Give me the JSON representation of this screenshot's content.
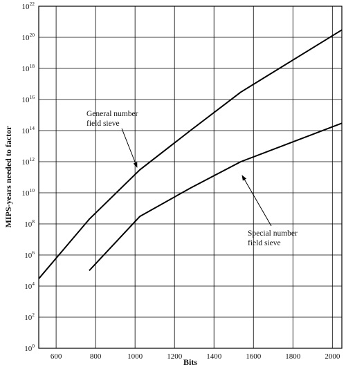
{
  "chart_data": {
    "type": "line",
    "xlabel": "Bits",
    "ylabel": "MIPS-years needed to factor",
    "xlim": [
      512,
      2048
    ],
    "xticks": [
      600,
      800,
      1000,
      1200,
      1400,
      1600,
      1800,
      2000
    ],
    "yscale": "log",
    "yticks": [
      {
        "base": "10",
        "exp": "0"
      },
      {
        "base": "10",
        "exp": "2"
      },
      {
        "base": "10",
        "exp": "4"
      },
      {
        "base": "10",
        "exp": "6"
      },
      {
        "base": "10",
        "exp": "8"
      },
      {
        "base": "10",
        "exp": "10"
      },
      {
        "base": "10",
        "exp": "12"
      },
      {
        "base": "10",
        "exp": "14"
      },
      {
        "base": "10",
        "exp": "16"
      },
      {
        "base": "10",
        "exp": "18"
      },
      {
        "base": "10",
        "exp": "20"
      },
      {
        "base": "10",
        "exp": "22"
      }
    ],
    "ylim": [
      1,
      1e+22
    ],
    "grid": true,
    "series": [
      {
        "points": [
          [
            512,
            30000.0
          ],
          [
            768,
            200000000.0
          ],
          [
            1024,
            300000000000.0
          ],
          [
            1280,
            100000000000000.0
          ],
          [
            1536,
            3e+16
          ],
          [
            2048,
            3e+20
          ]
        ]
      },
      {
        "points": [
          [
            768,
            100000.0
          ],
          [
            1024,
            300000000.0
          ],
          [
            1280,
            20000000000.0
          ],
          [
            1536,
            1000000000000.0
          ],
          [
            2048,
            300000000000000.0
          ]
        ]
      }
    ],
    "annotations": [
      {
        "lines": [
          "General number",
          "field sieve"
        ],
        "series": 0
      },
      {
        "lines": [
          "Special number",
          "field sieve"
        ],
        "series": 1
      }
    ]
  }
}
